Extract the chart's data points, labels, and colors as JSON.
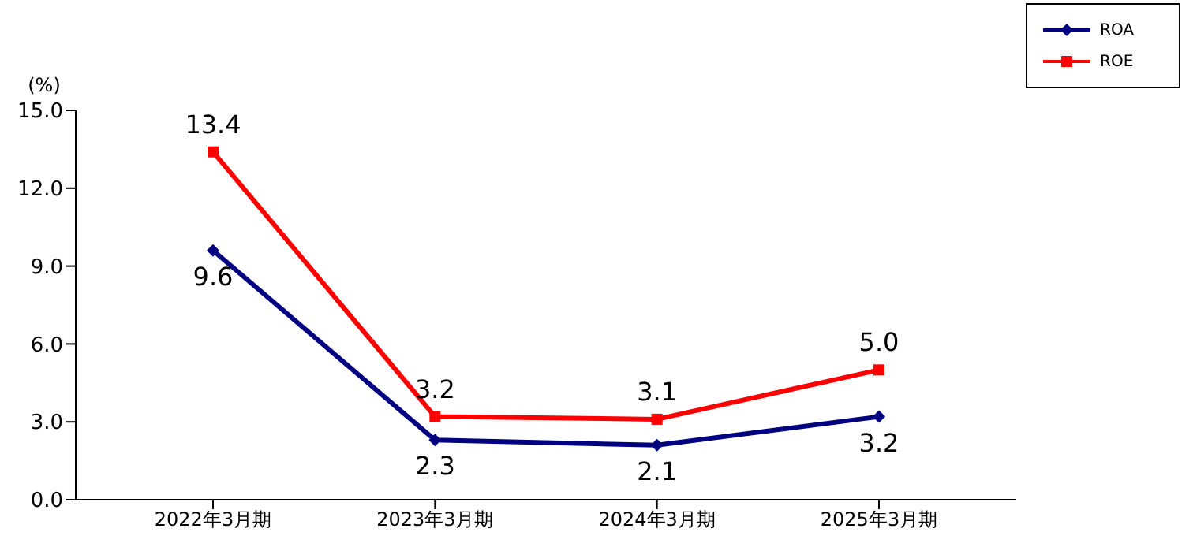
{
  "chart_data": {
    "type": "line",
    "ylabel": "(%)",
    "categories": [
      "2022年3月期",
      "2023年3月期",
      "2024年3月期",
      "2025年3月期"
    ],
    "series": [
      {
        "name": "ROA",
        "color": "#000080",
        "marker": "diamond",
        "values": [
          9.6,
          2.3,
          2.1,
          3.2
        ],
        "value_labels": [
          "9.6",
          "2.3",
          "2.1",
          "3.2"
        ]
      },
      {
        "name": "ROE",
        "color": "#ff0000",
        "marker": "square",
        "values": [
          13.4,
          3.2,
          3.1,
          5.0
        ],
        "value_labels": [
          "13.4",
          "3.2",
          "3.1",
          "5.0"
        ]
      }
    ],
    "ylim": [
      0,
      15
    ],
    "yticks": [
      {
        "value": 0,
        "label": "0.0"
      },
      {
        "value": 3,
        "label": "3.0"
      },
      {
        "value": 6,
        "label": "6.0"
      },
      {
        "value": 9,
        "label": "9.0"
      },
      {
        "value": 12,
        "label": "12.0"
      },
      {
        "value": 15,
        "label": "15.0"
      }
    ],
    "legend": "top right"
  }
}
